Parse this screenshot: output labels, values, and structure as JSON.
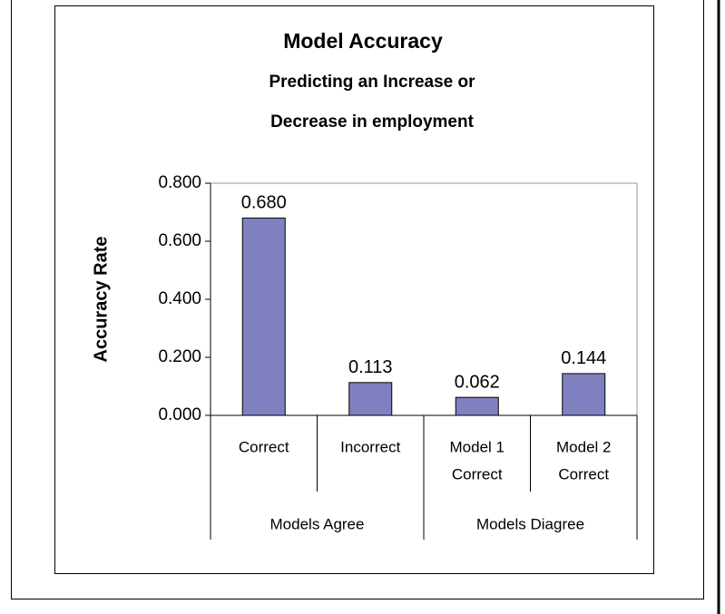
{
  "chart_data": {
    "type": "bar",
    "title": "Model Accuracy",
    "subtitle": [
      "Predicting an Increase or",
      "Decrease in employment"
    ],
    "y_label": "Accuracy Rate",
    "categories": [
      [
        "Correct"
      ],
      [
        "Incorrect"
      ],
      [
        "Model 1",
        "Correct"
      ],
      [
        "Model 2",
        "Correct"
      ]
    ],
    "category_groups": [
      "Models Agree",
      "Models Agree",
      "Models Diagree",
      "Models Diagree"
    ],
    "values": [
      0.68,
      0.113,
      0.062,
      0.144
    ],
    "value_labels": [
      "0.680",
      "0.113",
      "0.062",
      "0.144"
    ],
    "color": "#8080c0",
    "ylim": [
      0,
      0.8
    ],
    "yticks": [
      {
        "value": 0,
        "label": "0.000"
      },
      {
        "value": 0.2,
        "label": "0.200"
      },
      {
        "value": 0.4,
        "label": "0.400"
      },
      {
        "value": 0.6,
        "label": "0.600"
      },
      {
        "value": 0.8,
        "label": "0.800"
      }
    ]
  }
}
